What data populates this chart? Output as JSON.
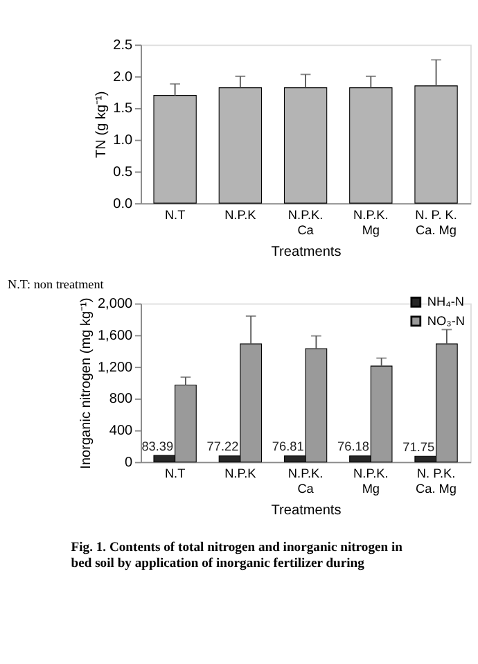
{
  "chart_data": [
    {
      "type": "bar",
      "xlabel": "Treatments",
      "ylabel": "TN (g kg⁻¹)",
      "categories": [
        "N.T",
        "N.P.K",
        "N.P.K.\nCa",
        "N.P.K.\nMg",
        "N. P. K.\nCa. Mg"
      ],
      "series": [
        {
          "color": "#b4b4b4",
          "values": [
            1.7,
            1.82,
            1.82,
            1.82,
            1.85
          ],
          "errors": [
            [
              1.7,
              1.88
            ],
            [
              1.82,
              2.0
            ],
            [
              1.82,
              2.03
            ],
            [
              1.82,
              2.0
            ],
            [
              1.85,
              2.26
            ]
          ]
        }
      ],
      "ylim": [
        0,
        2.5
      ],
      "yticks": [
        {
          "value": 0,
          "label": "0.0"
        },
        {
          "value": 0.5,
          "label": "0.5"
        },
        {
          "value": 1,
          "label": "1.0"
        },
        {
          "value": 1.5,
          "label": "1.5"
        },
        {
          "value": 2,
          "label": "2.0"
        },
        {
          "value": 2.5,
          "label": "2.5"
        }
      ],
      "grid": false,
      "legend": false
    },
    {
      "type": "bar",
      "xlabel": "Treatments",
      "ylabel": "Inorganic nitrogen (mg kg⁻¹)",
      "categories": [
        "N.T",
        "N.P.K",
        "N.P.K.\nCa",
        "N.P.K.\nMg",
        "N. P.K.\nCa. Mg"
      ],
      "series": [
        {
          "name": "NH₄-N",
          "color": "#262626",
          "values": [
            83.39,
            77.22,
            76.81,
            76.18,
            71.75
          ],
          "value_labels": [
            "83.39",
            "77.22",
            "76.81",
            "76.18",
            "71.75"
          ]
        },
        {
          "name": "NO₃-N",
          "color": "#9a9a9a",
          "values": [
            970,
            1490,
            1430,
            1210,
            1490
          ],
          "errors": [
            [
              970,
              1070
            ],
            [
              1490,
              1840
            ],
            [
              1430,
              1590
            ],
            [
              1210,
              1310
            ],
            [
              1490,
              1670
            ]
          ]
        }
      ],
      "ylim": [
        0,
        2000
      ],
      "yticks": [
        0,
        400,
        800,
        {
          "value": 1200,
          "label": "1,200"
        },
        {
          "value": 1600,
          "label": "1,600"
        },
        {
          "value": 2000,
          "label": "2,000"
        }
      ],
      "grid": false,
      "legend": "top right",
      "annotations": [
        "N.T: non treatment",
        "Fig. 1. Contents of total nitrogen and inorganic nitrogen in\n        bed soil by application of inorganic fertilizer during"
      ]
    }
  ]
}
